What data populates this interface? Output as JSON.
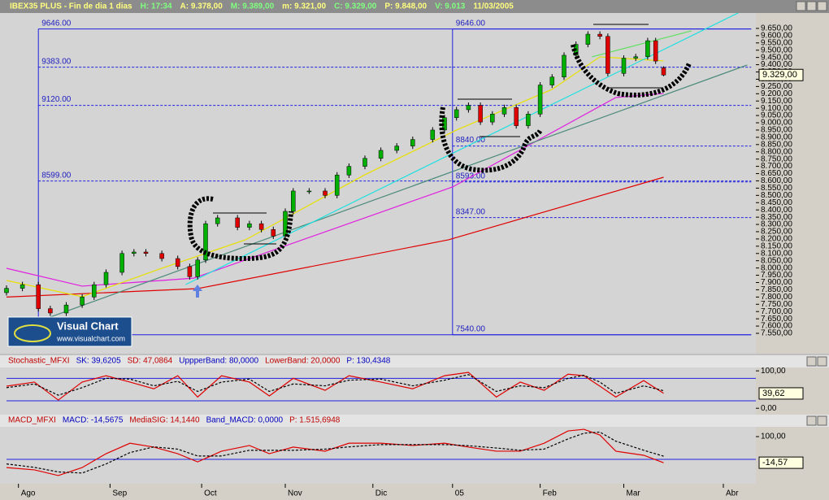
{
  "header": {
    "fields": [
      "IBEX35 PLUS - Fin de dia 1 dias",
      "H: 17:34",
      "A: 9.378,00",
      "M: 9.389,00",
      "m: 9.321,00",
      "C: 9.329,00",
      "P: 9.848,00",
      "V: 9.013",
      "11/03/2005"
    ]
  },
  "logo": {
    "title": "Visual Chart",
    "url": "www.visualchart.com"
  },
  "chart_data": [
    {
      "type": "candlestick",
      "x": [
        0,
        4,
        8,
        11,
        15,
        19,
        22,
        25,
        29,
        32,
        35,
        39,
        43,
        46,
        48,
        50,
        53,
        58,
        61,
        64,
        67,
        70,
        72,
        76,
        80,
        83,
        86,
        90,
        94,
        98,
        102,
        107,
        110,
        113,
        116,
        119,
        122,
        125,
        128,
        131,
        134,
        137,
        140,
        143,
        146,
        149,
        151,
        155,
        158,
        161,
        163,
        165
      ],
      "open": [
        7830,
        7860,
        7885,
        7720,
        7690,
        7745,
        7800,
        7885,
        7970,
        8100,
        8110,
        8100,
        8065,
        8010,
        7940,
        8055,
        8305,
        8345,
        8280,
        8305,
        8265,
        8220,
        8390,
        8530,
        8530,
        8500,
        8640,
        8700,
        8755,
        8810,
        8840,
        8885,
        8950,
        9035,
        9090,
        9120,
        9005,
        9060,
        9105,
        8980,
        9060,
        9260,
        9315,
        9465,
        9540,
        9610,
        9595,
        9340,
        9445,
        9455,
        9565,
        9378
      ],
      "high": [
        7880,
        7905,
        7905,
        7740,
        7765,
        7820,
        7905,
        7990,
        8120,
        8130,
        8130,
        8120,
        8085,
        8030,
        8075,
        8325,
        8365,
        8365,
        8325,
        8325,
        8285,
        8410,
        8550,
        8550,
        8550,
        8660,
        8720,
        8775,
        8830,
        8860,
        8905,
        8970,
        9055,
        9110,
        9140,
        9140,
        9080,
        9125,
        9125,
        9080,
        9280,
        9335,
        9485,
        9560,
        9630,
        9630,
        9615,
        9465,
        9475,
        9585,
        9585,
        9389
      ],
      "low": [
        7810,
        7840,
        7700,
        7670,
        7670,
        7725,
        7780,
        7865,
        7950,
        8080,
        8080,
        8045,
        7990,
        7920,
        7920,
        8035,
        8285,
        8260,
        8260,
        8245,
        8200,
        8200,
        8370,
        8510,
        8480,
        8480,
        8620,
        8680,
        8735,
        8790,
        8820,
        8865,
        8930,
        9015,
        9070,
        8985,
        8985,
        9040,
        8960,
        8960,
        9040,
        9240,
        9295,
        9445,
        9520,
        9575,
        9320,
        9320,
        9425,
        9435,
        9405,
        9321
      ],
      "close": [
        7860,
        7885,
        7720,
        7690,
        7745,
        7800,
        7885,
        7970,
        8100,
        8110,
        8100,
        8065,
        8010,
        7940,
        8055,
        8305,
        8345,
        8280,
        8305,
        8265,
        8220,
        8390,
        8530,
        8530,
        8500,
        8640,
        8700,
        8755,
        8810,
        8840,
        8885,
        8950,
        9035,
        9090,
        9120,
        9005,
        9060,
        9105,
        8980,
        9060,
        9260,
        9315,
        9465,
        9540,
        9610,
        9595,
        9340,
        9445,
        9455,
        9565,
        9425,
        9329
      ],
      "up_color": "#00b000",
      "down_color": "#e00000",
      "xlim": [
        0,
        188
      ],
      "xticks": [
        {
          "value": 3,
          "label": "Ago"
        },
        {
          "value": 26,
          "label": "Sep"
        },
        {
          "value": 49,
          "label": "Oct"
        },
        {
          "value": 70,
          "label": "Nov"
        },
        {
          "value": 92,
          "label": "Dic"
        },
        {
          "value": 112,
          "label": "05"
        },
        {
          "value": 134,
          "label": "Feb"
        },
        {
          "value": 155,
          "label": "Mar"
        },
        {
          "value": 180,
          "label": "Abr"
        }
      ],
      "ylim": [
        7410,
        9756
      ],
      "yticks": [
        {
          "value": 9650,
          "label": "9.650,00"
        },
        {
          "value": 9600,
          "label": "9.600,00"
        },
        {
          "value": 9550,
          "label": "9.550,00"
        },
        {
          "value": 9500,
          "label": "9.500,00"
        },
        {
          "value": 9450,
          "label": "9.450,00"
        },
        {
          "value": 9400,
          "label": "9.400,00"
        },
        {
          "value": 9350,
          "label": "9.350,00"
        },
        {
          "value": 9300,
          "label": "9.300,00"
        },
        {
          "value": 9250,
          "label": "9.250,00"
        },
        {
          "value": 9200,
          "label": "9.200,00"
        },
        {
          "value": 9150,
          "label": "9.150,00"
        },
        {
          "value": 9100,
          "label": "9.100,00"
        },
        {
          "value": 9050,
          "label": "9.050,00"
        },
        {
          "value": 9000,
          "label": "9.000,00"
        },
        {
          "value": 8950,
          "label": "8.950,00"
        },
        {
          "value": 8900,
          "label": "8.900,00"
        },
        {
          "value": 8850,
          "label": "8.850,00"
        },
        {
          "value": 8800,
          "label": "8.800,00"
        },
        {
          "value": 8750,
          "label": "8.750,00"
        },
        {
          "value": 8700,
          "label": "8.700,00"
        },
        {
          "value": 8650,
          "label": "8.650,00"
        },
        {
          "value": 8600,
          "label": "8.600,00"
        },
        {
          "value": 8550,
          "label": "8.550,00"
        },
        {
          "value": 8500,
          "label": "8.500,00"
        },
        {
          "value": 8450,
          "label": "8.450,00"
        },
        {
          "value": 8400,
          "label": "8.400,00"
        },
        {
          "value": 8350,
          "label": "8.350,00"
        },
        {
          "value": 8300,
          "label": "8.300,00"
        },
        {
          "value": 8250,
          "label": "8.250,00"
        },
        {
          "value": 8200,
          "label": "8.200,00"
        },
        {
          "value": 8150,
          "label": "8.150,00"
        },
        {
          "value": 8100,
          "label": "8.100,00"
        },
        {
          "value": 8050,
          "label": "8.050,00"
        },
        {
          "value": 8000,
          "label": "8.000,00"
        },
        {
          "value": 7950,
          "label": "7.950,00"
        },
        {
          "value": 7900,
          "label": "7.900,00"
        },
        {
          "value": 7850,
          "label": "7.850,00"
        },
        {
          "value": 7800,
          "label": "7.800,00"
        },
        {
          "value": 7750,
          "label": "7.750,00"
        },
        {
          "value": 7700,
          "label": "7.700,00"
        },
        {
          "value": 7650,
          "label": "7.650,00"
        },
        {
          "value": 7600,
          "label": "7.600,00"
        },
        {
          "value": 7550,
          "label": "7.550,00"
        }
      ],
      "overlays": [
        {
          "color": "#e00000",
          "x": [
            0,
            48,
            111,
            165
          ],
          "values": [
            7800,
            7858,
            8194,
            8625
          ]
        },
        {
          "color": "#e020e0",
          "x": [
            0,
            19,
            47,
            112,
            153,
            165
          ],
          "values": [
            7998,
            7875,
            7930,
            8558,
            9174,
            9202
          ]
        },
        {
          "color": "#e8e000",
          "x": [
            0,
            19,
            39,
            60,
            90,
            113,
            137,
            149,
            165
          ],
          "values": [
            7914,
            7802,
            7998,
            8194,
            8642,
            8950,
            9230,
            9454,
            9426
          ]
        },
        {
          "color": "#4a8a7a",
          "x": [
            11,
            186
          ],
          "values": [
            7662,
            9398
          ]
        },
        {
          "color": "#20e0e0",
          "x": [
            45,
            187
          ],
          "values": [
            7886,
            9801
          ]
        },
        {
          "color": "#60e060",
          "x": [
            147,
            172
          ],
          "values": [
            9454,
            9633
          ]
        }
      ],
      "fib_groups": [
        {
          "start": 8,
          "levels": [
            9646,
            9383,
            9120,
            8599,
            7540
          ],
          "labels": [
            "9646.00",
            "9383.00",
            "9120.00",
            "8599.00",
            null
          ]
        },
        {
          "start": 112,
          "levels": [
            9646,
            8840,
            8593,
            8347,
            7540
          ],
          "labels": [
            "9646.00",
            "8840.00",
            "8593.00",
            "8347.00",
            "7540.00"
          ]
        }
      ],
      "fib_end": 187,
      "last": {
        "value": 9329,
        "label": "9.329,00"
      }
    },
    {
      "type": "line",
      "title_parts": [
        "Stochastic_MFXI",
        "SK: 39,6205",
        "SD: 47,0864",
        "UppperBand: 80,0000",
        "LowerBand: 20,0000",
        "P: 130,4348"
      ],
      "x": [
        0,
        7,
        13,
        19,
        25,
        31,
        37,
        43,
        48,
        54,
        61,
        66,
        72,
        80,
        86,
        94,
        102,
        110,
        116,
        123,
        129,
        135,
        141,
        145,
        149,
        153,
        160,
        165
      ],
      "series": [
        {
          "color": "#e00000",
          "dash": false,
          "values": [
            59,
            70,
            22,
            70,
            87,
            70,
            52,
            87,
            30,
            87,
            70,
            33,
            80,
            48,
            87,
            70,
            52,
            87,
            96,
            30,
            70,
            48,
            91,
            87,
            59,
            30,
            74,
            40
          ]
        },
        {
          "color": "#000000",
          "dash": true,
          "values": [
            55,
            65,
            35,
            55,
            80,
            78,
            60,
            72,
            45,
            70,
            78,
            45,
            65,
            60,
            75,
            78,
            60,
            75,
            90,
            45,
            60,
            55,
            80,
            88,
            70,
            40,
            60,
            47
          ]
        }
      ],
      "bands": [
        80,
        20
      ],
      "xlim": [
        0,
        188
      ],
      "ylim": [
        -17,
        109
      ],
      "yticks": [
        {
          "value": 100,
          "label": "100,00"
        },
        {
          "value": 0,
          "label": "0,00"
        }
      ],
      "last": {
        "value": 39.62,
        "label": "39,62"
      }
    },
    {
      "type": "line",
      "title_parts": [
        "MACD_MFXI",
        "MACD: -14,5675",
        "MediaSIG: 14,1440",
        "Band_MACD: 0,0000",
        "P: 1.515,6948"
      ],
      "x": [
        0,
        7,
        13,
        19,
        25,
        31,
        37,
        43,
        48,
        54,
        61,
        66,
        72,
        80,
        86,
        94,
        102,
        110,
        116,
        123,
        129,
        135,
        141,
        145,
        149,
        153,
        160,
        165
      ],
      "series": [
        {
          "color": "#e00000",
          "dash": false,
          "values": [
            -36,
            -46,
            -71,
            -36,
            25,
            71,
            54,
            25,
            -11,
            36,
            61,
            25,
            54,
            36,
            71,
            71,
            61,
            71,
            54,
            36,
            36,
            71,
            125,
            132,
            107,
            36,
            18,
            -15
          ]
        },
        {
          "color": "#000000",
          "dash": true,
          "values": [
            -20,
            -35,
            -55,
            -60,
            -20,
            30,
            55,
            45,
            15,
            15,
            40,
            40,
            40,
            45,
            55,
            65,
            65,
            65,
            60,
            50,
            40,
            45,
            90,
            115,
            120,
            80,
            40,
            14
          ]
        }
      ],
      "bands": [
        0
      ],
      "xlim": [
        0,
        188
      ],
      "ylim": [
        -107,
        143
      ],
      "yticks": [
        {
          "value": 100,
          "label": "100,00"
        }
      ],
      "last": {
        "value": -14.57,
        "label": "-14,57"
      }
    }
  ]
}
